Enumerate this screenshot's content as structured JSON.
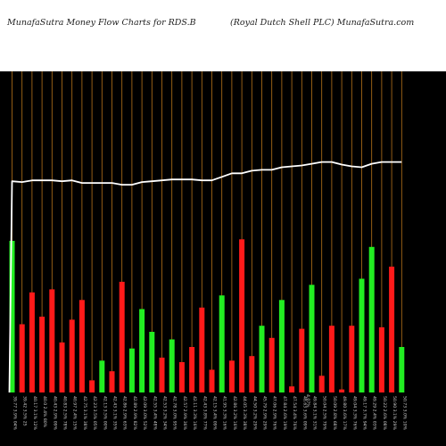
{
  "header": {
    "left": "MunafaSutra  Money Flow  Charts for RDS.B",
    "right": "(Royal Dutch Shell PLC) MunafaSutra.com"
  },
  "colors": {
    "background": "#000000",
    "vgrid": "#b8741a",
    "up": "#22ee22",
    "down": "#ff1a1a",
    "line": "#ffffff",
    "label": "#cfcfcf"
  },
  "chart_data": {
    "type": "bar",
    "title": "MunafaSutra  Money Flow  Charts for RDS.B",
    "subtitle": "(Royal Dutch Shell PLC) MunafaSutra.com",
    "ylim": [
      0,
      100
    ],
    "bars": [
      {
        "label": "39.77 3.9% 04%",
        "value": 100,
        "color": "up"
      },
      {
        "label": "39.42 3.5% 25",
        "value": 45,
        "color": "down"
      },
      {
        "label": "40.17 3.1% 12%",
        "value": 66,
        "color": "down"
      },
      {
        "label": "40.0 2.4% 80%",
        "value": 50,
        "color": "down"
      },
      {
        "label": "40.43 2.9% 09%",
        "value": 68,
        "color": "down"
      },
      {
        "label": "40.83 2.5% 78%",
        "value": 33,
        "color": "down"
      },
      {
        "label": "40.97 2.4% 15%",
        "value": 48,
        "color": "down"
      },
      {
        "label": "42.75 3.1% 38%",
        "value": 61,
        "color": "down"
      },
      {
        "label": "42.23 3.5% 05%",
        "value": 8,
        "color": "down"
      },
      {
        "label": "42.13 3.5% 00%",
        "value": 21,
        "color": "up"
      },
      {
        "label": "42.43 3.1% 35%",
        "value": 14,
        "color": "down"
      },
      {
        "label": "42.86 2.9% 63%",
        "value": 73,
        "color": "down"
      },
      {
        "label": "42.89 2.9% 82%",
        "value": 29,
        "color": "up"
      },
      {
        "label": "42.09 3.0% 52%",
        "value": 55,
        "color": "up"
      },
      {
        "label": "42.55 3.4% 48%",
        "value": 40,
        "color": "up"
      },
      {
        "label": "42.53 3.2% 34%",
        "value": 23,
        "color": "down"
      },
      {
        "label": "42.78 3.0% 95%",
        "value": 35,
        "color": "up"
      },
      {
        "label": "42.57 2.9% 36%",
        "value": 20,
        "color": "down"
      },
      {
        "label": "42.11 3.3% 16%",
        "value": 30,
        "color": "down"
      },
      {
        "label": "42.43 3.8% 77%",
        "value": 56,
        "color": "down"
      },
      {
        "label": "42.15 3.4% 09%",
        "value": 15,
        "color": "down"
      },
      {
        "label": "41.95 3.3% 16%",
        "value": 64,
        "color": "up"
      },
      {
        "label": "42.86 3.2% 16%",
        "value": 21,
        "color": "down"
      },
      {
        "label": "44.05 3.3% 38%",
        "value": 101,
        "color": "down"
      },
      {
        "label": "44.50 3.2% 29%",
        "value": 24,
        "color": "down"
      },
      {
        "label": "45.79 2.9% 29%",
        "value": 44,
        "color": "up"
      },
      {
        "label": "47.06 2.9% 76%",
        "value": 36,
        "color": "down"
      },
      {
        "label": "47.84 2.6% 19%",
        "value": 61,
        "color": "up"
      },
      {
        "label": "47.54 3.4% 76%",
        "value": 4,
        "color": "down"
      },
      {
        "label": "48.63 3.6% 09%",
        "value": 42,
        "color": "down"
      },
      {
        "label": "49.84 3.1% 31%",
        "value": 71,
        "color": "up"
      },
      {
        "label": "50.04 2.5% 79%",
        "value": 11,
        "color": "down"
      },
      {
        "label": "50.09 2.8% 68%",
        "value": 44,
        "color": "down"
      },
      {
        "label": "49.80 3.6% 17%",
        "value": 2,
        "color": "down"
      },
      {
        "label": "49.04 3.3% 76%",
        "value": 44,
        "color": "down"
      },
      {
        "label": "49.17 3.7% 94%",
        "value": 75,
        "color": "up"
      },
      {
        "label": "49.29 2.4% 03%",
        "value": 96,
        "color": "up"
      },
      {
        "label": "50.22 2.6% 08%",
        "value": 43,
        "color": "down"
      },
      {
        "label": "50.90 3.1% 29%",
        "value": 83,
        "color": "down"
      },
      {
        "label": "50.73 3.0% 10%",
        "value": 30,
        "color": "up"
      }
    ],
    "line": [
      58,
      57,
      59,
      59,
      59,
      58,
      59,
      56,
      56,
      56,
      56,
      54,
      54,
      57,
      58,
      59,
      60,
      60,
      60,
      59,
      59,
      63,
      67,
      67,
      70,
      71,
      71,
      74,
      75,
      76,
      78,
      80,
      80,
      77,
      75,
      74,
      78,
      80,
      80,
      80
    ],
    "annotation": "4.07%"
  }
}
